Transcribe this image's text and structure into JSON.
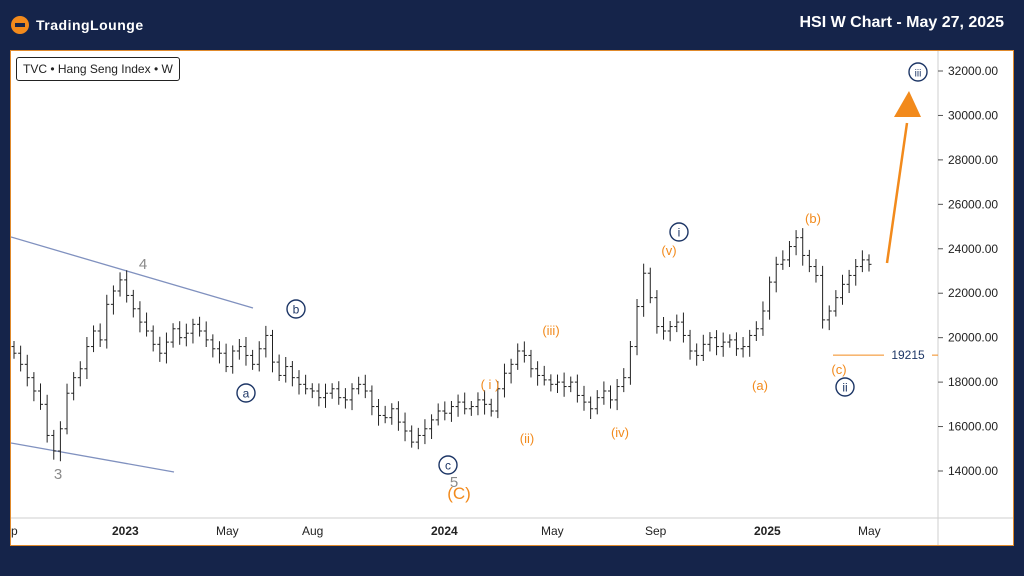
{
  "header": {
    "brand": "TradingLounge",
    "chart_title": "HSI W Chart - May 27, 2025"
  },
  "symbol_label": "TVC • Hang Seng Index • W",
  "colors": {
    "background": "#15244a",
    "accent": "#f28a1c",
    "navy_label": "#1d3666",
    "trendline": "#8091bf",
    "bars": "#222222"
  },
  "chart_data": {
    "type": "ohlc-bar",
    "title": "HSI W Chart - May 27, 2025",
    "xlabel": "",
    "ylabel": "",
    "ylim": [
      12000,
      33000
    ],
    "y_ticks": [
      "32000.00",
      "30000.00",
      "28000.00",
      "26000.00",
      "24000.00",
      "22000.00",
      "20000.00",
      "18000.00",
      "16000.00",
      "14000.00"
    ],
    "x_ticks": [
      "p",
      "2023",
      "May",
      "Aug",
      "2024",
      "May",
      "Sep",
      "2025",
      "May"
    ],
    "price_line": {
      "value": 19215,
      "label": "19215"
    },
    "wave_labels": [
      {
        "text": "4",
        "group": "gray"
      },
      {
        "text": "3",
        "group": "gray"
      },
      {
        "text": "5",
        "group": "gray"
      },
      {
        "text": "a",
        "group": "navy-circle"
      },
      {
        "text": "b",
        "group": "navy-circle"
      },
      {
        "text": "c",
        "group": "navy-circle"
      },
      {
        "text": "i",
        "group": "navy-circle"
      },
      {
        "text": "ii",
        "group": "navy-circle"
      },
      {
        "text": "iii",
        "group": "navy-circle"
      },
      {
        "text": "(C)",
        "group": "orange"
      },
      {
        "text": "( i )",
        "group": "orange"
      },
      {
        "text": "(ii)",
        "group": "orange"
      },
      {
        "text": "(iii)",
        "group": "orange"
      },
      {
        "text": "(iv)",
        "group": "orange"
      },
      {
        "text": "(v)",
        "group": "orange"
      },
      {
        "text": "(a)",
        "group": "orange"
      },
      {
        "text": "(b)",
        "group": "orange"
      },
      {
        "text": "(c)",
        "group": "orange"
      }
    ],
    "weekly_closes": [
      19300,
      18800,
      18200,
      17600,
      17000,
      15600,
      14900,
      15900,
      17500,
      18200,
      18600,
      19600,
      20300,
      19900,
      21500,
      22100,
      22600,
      21900,
      21300,
      20700,
      20300,
      19700,
      19300,
      19800,
      20400,
      20000,
      20200,
      20600,
      20300,
      19900,
      19500,
      19300,
      18700,
      19400,
      19600,
      19200,
      18800,
      19500,
      20100,
      18900,
      18300,
      18700,
      18200,
      17900,
      17700,
      17600,
      17300,
      17500,
      17700,
      17300,
      17200,
      17700,
      17900,
      17600,
      16900,
      16500,
      16400,
      16800,
      16200,
      15800,
      15300,
      15600,
      15900,
      16300,
      16700,
      16600,
      16900,
      17100,
      16800,
      16900,
      17200,
      17000,
      16700,
      17700,
      18400,
      18800,
      19400,
      19200,
      18600,
      18300,
      18100,
      17900,
      18000,
      17800,
      18000,
      17400,
      17100,
      16800,
      17300,
      17600,
      17200,
      17800,
      18200,
      19600,
      21400,
      22900,
      21800,
      20500,
      20300,
      20500,
      20700,
      20100,
      19400,
      19200,
      19700,
      20000,
      19600,
      19800,
      19900,
      19500,
      19600,
      20100,
      20400,
      21200,
      22500,
      23300,
      23500,
      24100,
      24500,
      23700,
      23200,
      22800,
      20800,
      21200,
      21800,
      22400,
      22800,
      23200,
      23500,
      23300
    ]
  }
}
